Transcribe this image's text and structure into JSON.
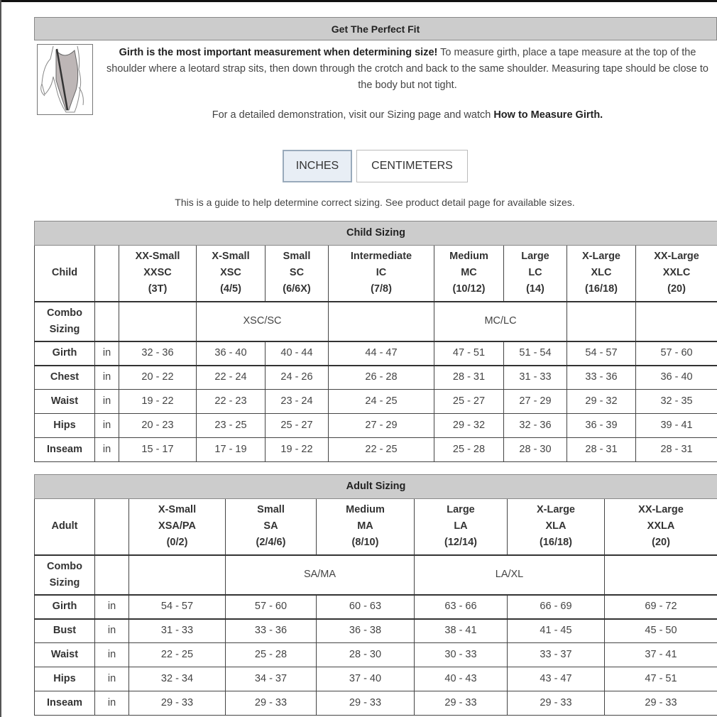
{
  "fit": {
    "title": "Get The Perfect Fit",
    "intro_bold": "Girth is the most important measurement when determining size!",
    "intro_rest": " To measure girth, place a tape measure at the top of the shoulder where a leotard strap sits, then down through the crotch and back to the same shoulder. Measuring tape should be close to the body but not tight.",
    "demo_text": "For a detailed demonstration, visit our Sizing page and watch ",
    "demo_link": "How to Measure Girth."
  },
  "units": {
    "inches": "INCHES",
    "centimeters": "CENTIMETERS",
    "active": "inches"
  },
  "guide": "This is a guide to help determine correct sizing. See product detail page for available sizes.",
  "child": {
    "title": "Child Sizing",
    "corner": "Child",
    "sizes": [
      [
        "XX-Small",
        "XXSC",
        "(3T)"
      ],
      [
        "X-Small",
        "XSC",
        "(4/5)"
      ],
      [
        "Small",
        "SC",
        "(6/6X)"
      ],
      [
        "Intermediate",
        "IC",
        "(7/8)"
      ],
      [
        "Medium",
        "MC",
        "(10/12)"
      ],
      [
        "Large",
        "LC",
        "(14)"
      ],
      [
        "X-Large",
        "XLC",
        "(16/18)"
      ],
      [
        "XX-Large",
        "XXLC",
        "(20)"
      ]
    ],
    "combo_label": [
      "Combo",
      "Sizing"
    ],
    "combo": [
      {
        "text": "",
        "span": 1
      },
      {
        "text": "XSC/SC",
        "span": 2
      },
      {
        "text": "",
        "span": 1
      },
      {
        "text": "MC/LC",
        "span": 2
      },
      {
        "text": "",
        "span": 1
      },
      {
        "text": "",
        "span": 1
      }
    ],
    "rows": [
      {
        "label": "Girth",
        "unit": "in",
        "values": [
          "32 - 36",
          "36 - 40",
          "40 - 44",
          "44 - 47",
          "47 - 51",
          "51 - 54",
          "54 - 57",
          "57 - 60"
        ]
      },
      {
        "label": "Chest",
        "unit": "in",
        "values": [
          "20 - 22",
          "22 - 24",
          "24 - 26",
          "26 - 28",
          "28 - 31",
          "31 - 33",
          "33 - 36",
          "36 - 40"
        ]
      },
      {
        "label": "Waist",
        "unit": "in",
        "values": [
          "19 - 22",
          "22 - 23",
          "23 - 24",
          "24 - 25",
          "25 - 27",
          "27 - 29",
          "29 - 32",
          "32 - 35"
        ]
      },
      {
        "label": "Hips",
        "unit": "in",
        "values": [
          "20 - 23",
          "23 - 25",
          "25 - 27",
          "27 - 29",
          "29 - 32",
          "32 - 36",
          "36 - 39",
          "39 - 41"
        ]
      },
      {
        "label": "Inseam",
        "unit": "in",
        "values": [
          "15 - 17",
          "17 - 19",
          "19 - 22",
          "22 - 25",
          "25 - 28",
          "28 - 30",
          "28 - 31",
          "28 - 31"
        ]
      }
    ]
  },
  "adult": {
    "title": "Adult Sizing",
    "corner": "Adult",
    "sizes": [
      [
        "X-Small",
        "XSA/PA",
        "(0/2)"
      ],
      [
        "Small",
        "SA",
        "(2/4/6)"
      ],
      [
        "Medium",
        "MA",
        "(8/10)"
      ],
      [
        "Large",
        "LA",
        "(12/14)"
      ],
      [
        "X-Large",
        "XLA",
        "(16/18)"
      ],
      [
        "XX-Large",
        "XXLA",
        "(20)"
      ]
    ],
    "combo_label": [
      "Combo",
      "Sizing"
    ],
    "combo": [
      {
        "text": "",
        "span": 1
      },
      {
        "text": "SA/MA",
        "span": 2
      },
      {
        "text": "LA/XL",
        "span": 2
      },
      {
        "text": "",
        "span": 1
      }
    ],
    "rows": [
      {
        "label": "Girth",
        "unit": "in",
        "values": [
          "54 - 57",
          "57 - 60",
          "60 - 63",
          "63 - 66",
          "66 - 69",
          "69 - 72"
        ]
      },
      {
        "label": "Bust",
        "unit": "in",
        "values": [
          "31 - 33",
          "33 - 36",
          "36 - 38",
          "38 - 41",
          "41 - 45",
          "45 - 50"
        ]
      },
      {
        "label": "Waist",
        "unit": "in",
        "values": [
          "22 - 25",
          "25 - 28",
          "28 - 30",
          "30 - 33",
          "33 - 37",
          "37 - 41"
        ]
      },
      {
        "label": "Hips",
        "unit": "in",
        "values": [
          "32 - 34",
          "34 - 37",
          "37 - 40",
          "40 - 43",
          "43 - 47",
          "47 - 51"
        ]
      },
      {
        "label": "Inseam",
        "unit": "in",
        "values": [
          "29 - 33",
          "29 - 33",
          "29 - 33",
          "29 - 33",
          "29 - 33",
          "29 - 33"
        ]
      }
    ]
  }
}
